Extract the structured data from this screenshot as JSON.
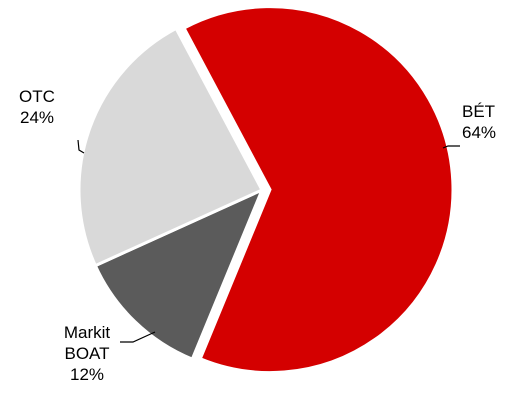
{
  "chart_data": {
    "type": "pie",
    "title": "",
    "slices": [
      {
        "label": "BÉT",
        "label_lines": [
          "BÉT"
        ],
        "value": 64,
        "value_text": "64%",
        "color": "#d40000",
        "exploded": true
      },
      {
        "label": "Markit BOAT",
        "label_lines": [
          "Markit",
          "BOAT"
        ],
        "value": 12,
        "value_text": "12%",
        "color": "#5b5b5b",
        "exploded": false
      },
      {
        "label": "OTC",
        "label_lines": [
          "OTC"
        ],
        "value": 24,
        "value_text": "24%",
        "color": "#d9d9d9",
        "exploded": false
      }
    ],
    "legend": "none",
    "data_labels": "outside-with-leader-lines"
  }
}
